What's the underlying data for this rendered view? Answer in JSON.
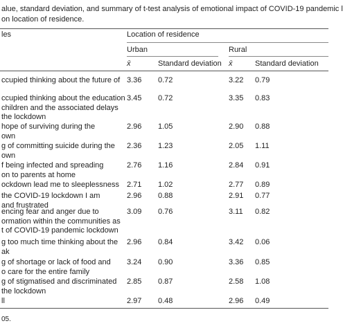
{
  "caption": [
    "alue, standard deviation, and summary of t-test analysis of emotional impact of COVID-19 pandemic l",
    "on location of residence."
  ],
  "header": {
    "variables": "les",
    "group": "Location of residence",
    "urban": "Urban",
    "rural": "Rural",
    "mean": "x̄",
    "sd": "Standard deviation"
  },
  "rows": [
    {
      "label": [
        "ccupied thinking about the future of"
      ],
      "urban_mean": "3.36",
      "urban_sd": "0.72",
      "rural_mean": "3.22",
      "rural_sd": "0.79"
    },
    {
      "label": [
        "ccupied thinking about the education",
        "children and the associated delays",
        "the lockdown"
      ],
      "urban_mean": "3.45",
      "urban_sd": "0.72",
      "rural_mean": "3.35",
      "rural_sd": "0.83"
    },
    {
      "label": [
        "hope of surviving during the",
        "own"
      ],
      "urban_mean": "2.96",
      "urban_sd": "1.05",
      "rural_mean": "2.90",
      "rural_sd": "0.88"
    },
    {
      "label": [
        "g of committing suicide during the",
        "own"
      ],
      "urban_mean": "2.36",
      "urban_sd": "1.23",
      "rural_mean": "2.05",
      "rural_sd": "1.11"
    },
    {
      "label": [
        "f being infected and spreading",
        "on to parents at home"
      ],
      "urban_mean": "2.76",
      "urban_sd": "1.16",
      "rural_mean": "2.84",
      "rural_sd": "0.91"
    },
    {
      "label": [
        "ockdown lead me to sleeplessness"
      ],
      "urban_mean": "2.71",
      "urban_sd": "1.02",
      "rural_mean": "2.77",
      "rural_sd": "0.89"
    },
    {
      "label": [
        "the COVID-19 lockdown I am",
        "and frustrated"
      ],
      "urban_mean": "2.96",
      "urban_sd": "0.88",
      "rural_mean": "2.91",
      "rural_sd": "0.77"
    },
    {
      "label": [
        "encing fear and anger due to",
        "ormation within the communities as",
        "t of COVID-19 pandemic lockdown"
      ],
      "urban_mean": "3.09",
      "urban_sd": "0.76",
      "rural_mean": "3.11",
      "rural_sd": "0.82"
    },
    {
      "label": [
        "g too much time thinking about the",
        "ak"
      ],
      "urban_mean": "2.96",
      "urban_sd": "0.84",
      "rural_mean": "3.42",
      "rural_sd": "0.06"
    },
    {
      "label": [
        "g of shortage or lack of food and",
        "o care for the entire family"
      ],
      "urban_mean": "3.24",
      "urban_sd": "0.90",
      "rural_mean": "3.36",
      "rural_sd": "0.85"
    },
    {
      "label": [
        "g of stigmatised and discriminated",
        "the lockdown"
      ],
      "urban_mean": "2.85",
      "urban_sd": "0.87",
      "rural_mean": "2.58",
      "rural_sd": "1.08"
    },
    {
      "label": [
        "ll"
      ],
      "urban_mean": "2.97",
      "urban_sd": "0.48",
      "rural_mean": "2.96",
      "rural_sd": "0.49"
    }
  ],
  "footnote": "05."
}
